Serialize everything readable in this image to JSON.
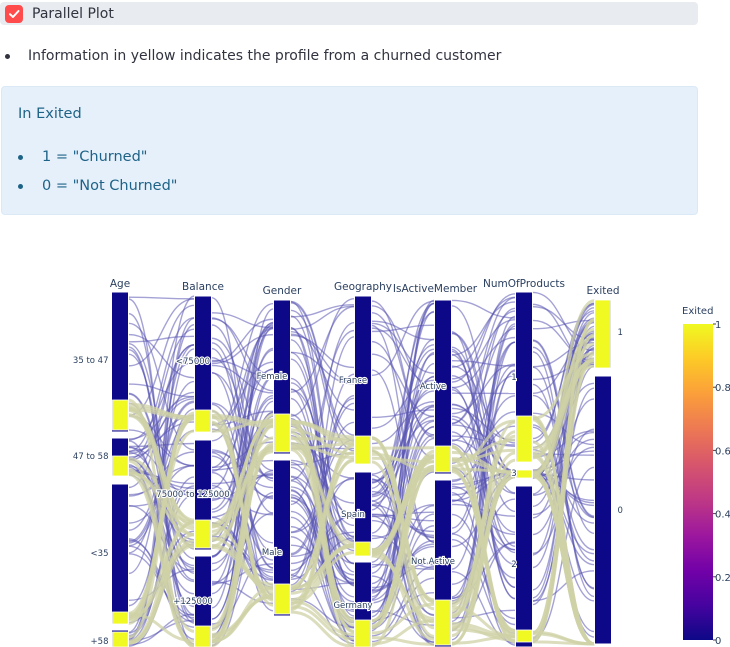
{
  "checkbox": {
    "label": "Parallel Plot",
    "checked": true,
    "color": "#ff4b4b"
  },
  "bullet": {
    "text": "Information in yellow indicates the profile from a churned customer"
  },
  "info": {
    "title": "In Exited",
    "items": [
      "1 = \"Churned\"",
      "0 = \"Not Churned\""
    ]
  },
  "chart_data": {
    "type": "parallel_categories",
    "dimensions": [
      {
        "name": "Age",
        "categories": [
          "35 to 47",
          "47 to 58",
          "<35",
          "+58"
        ]
      },
      {
        "name": "Balance",
        "categories": [
          "<75000",
          "75000 to 125000",
          "+125000"
        ]
      },
      {
        "name": "Gender",
        "categories": [
          "Female",
          "Male"
        ]
      },
      {
        "name": "Geography",
        "categories": [
          "France",
          "Spain",
          "Germany"
        ]
      },
      {
        "name": "IsActiveMember",
        "categories": [
          "Active",
          "Not Active"
        ]
      },
      {
        "name": "NumOfProducts",
        "categories": [
          "1",
          "3",
          "2"
        ]
      },
      {
        "name": "Exited",
        "categories": [
          "1",
          "0"
        ]
      }
    ],
    "colorbar": {
      "title": "Exited",
      "ticks": [
        "1",
        "0.8",
        "0.6",
        "0.4",
        "0.2",
        "0"
      ],
      "range": [
        0,
        1
      ],
      "colorscale": "Plasma"
    },
    "colors": {
      "not_churned": "#0d0887",
      "churned": "#f0f921",
      "churned_flow": "#cfd2a6",
      "not_churned_flow": "#5a55b3"
    }
  }
}
